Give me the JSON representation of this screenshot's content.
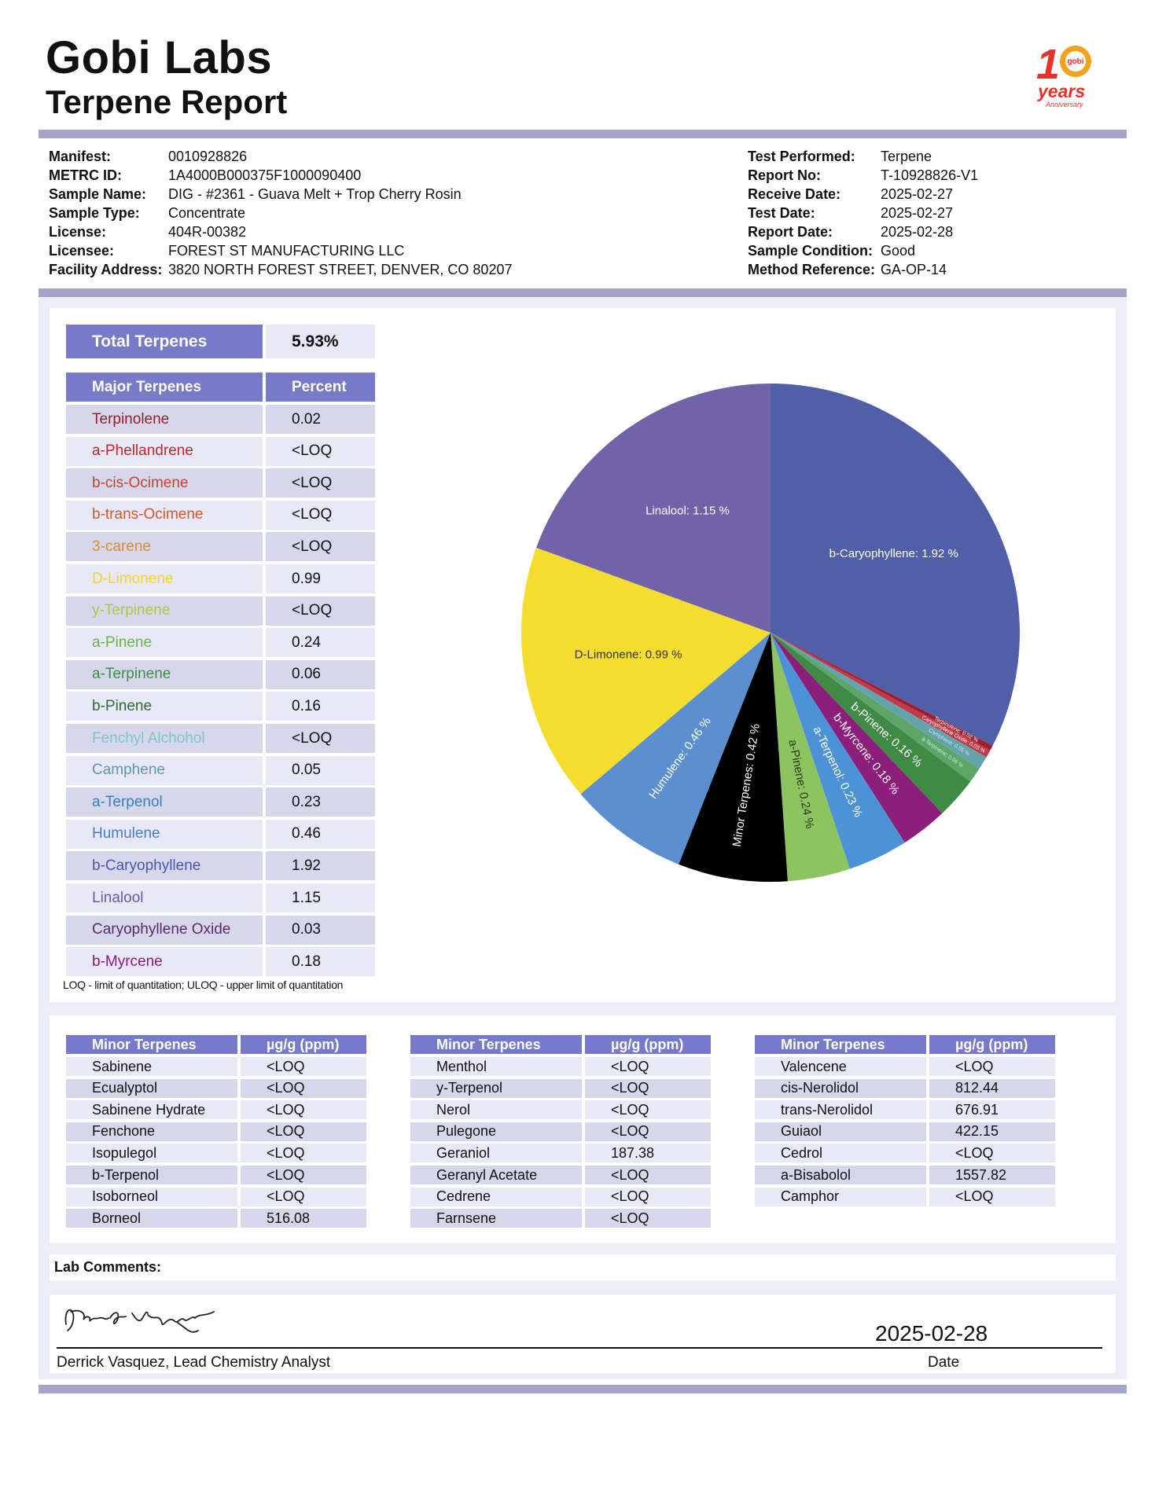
{
  "header": {
    "company": "Gobi Labs",
    "report_title": "Terpene Report",
    "logo_text": "10 years Anniversary",
    "logo_badge": "gobi",
    "logo_years": "years",
    "logo_sub": "Anniversary"
  },
  "sample_info": [
    {
      "label": "Manifest:",
      "value": "0010928826"
    },
    {
      "label": "METRC ID:",
      "value": "1A4000B000375F1000090400"
    },
    {
      "label": "Sample Name:",
      "value": "DIG - #2361 - Guava Melt + Trop Cherry Rosin"
    },
    {
      "label": "Sample Type:",
      "value": "Concentrate"
    },
    {
      "label": "License:",
      "value": "404R-00382"
    },
    {
      "label": "Licensee:",
      "value": "FOREST ST MANUFACTURING LLC"
    },
    {
      "label": "Facility Address:",
      "value": "3820 NORTH FOREST STREET, DENVER, CO 80207"
    }
  ],
  "test_info": [
    {
      "label": "Test Performed:",
      "value": "Terpene"
    },
    {
      "label": "Report No:",
      "value": "T-10928826-V1"
    },
    {
      "label": "Receive Date:",
      "value": "2025-02-27"
    },
    {
      "label": "Test Date:",
      "value": "2025-02-27"
    },
    {
      "label": "Report Date:",
      "value": "2025-02-28"
    },
    {
      "label": "Sample Condition:",
      "value": "Good"
    },
    {
      "label": "Method Reference:",
      "value": "GA-OP-14"
    }
  ],
  "total": {
    "label": "Total Terpenes",
    "value": "5.93%"
  },
  "major": {
    "col1": "Major Terpenes",
    "col2": "Percent",
    "rows": [
      {
        "name": "Terpinolene",
        "value": "0.02",
        "color": "#9b1a2b"
      },
      {
        "name": "a-Phellandrene",
        "value": "<LOQ",
        "color": "#c0282c"
      },
      {
        "name": "b-cis-Ocimene",
        "value": "<LOQ",
        "color": "#c9422c"
      },
      {
        "name": "b-trans-Ocimene",
        "value": "<LOQ",
        "color": "#d35a2a"
      },
      {
        "name": "3-carene",
        "value": "<LOQ",
        "color": "#e08a2a"
      },
      {
        "name": "D-Limonene",
        "value": "0.99",
        "color": "#f2d629"
      },
      {
        "name": "y-Terpinene",
        "value": "<LOQ",
        "color": "#a8c94a"
      },
      {
        "name": "a-Pinene",
        "value": "0.24",
        "color": "#6db24a"
      },
      {
        "name": "a-Terpinene",
        "value": "0.06",
        "color": "#3e8f46"
      },
      {
        "name": "b-Pinene",
        "value": "0.16",
        "color": "#2f6f35"
      },
      {
        "name": "Fenchyl Alchohol",
        "value": "<LOQ",
        "color": "#7bc7c7"
      },
      {
        "name": "Camphene",
        "value": "0.05",
        "color": "#5a9aa8"
      },
      {
        "name": "a-Terpenol",
        "value": "0.23",
        "color": "#3a7fbf"
      },
      {
        "name": "Humulene",
        "value": "0.46",
        "color": "#4a7fc0"
      },
      {
        "name": "b-Caryophyllene",
        "value": "1.92",
        "color": "#4a58a8"
      },
      {
        "name": "Linalool",
        "value": "1.15",
        "color": "#6a5aa8"
      },
      {
        "name": "Caryophyllene Oxide",
        "value": "0.03",
        "color": "#5a2a6a"
      },
      {
        "name": "b-Myrcene",
        "value": "0.18",
        "color": "#8a1a7a"
      }
    ]
  },
  "footnote": "LOQ - limit of quantitation; ULOQ - upper limit of quantitation",
  "chart_data": {
    "type": "pie",
    "title": "",
    "unit": "%",
    "slices": [
      {
        "label": "b-Caryophyllene",
        "value": 1.92,
        "color": "#515ea8"
      },
      {
        "label": "Terpinolene",
        "value": 0.02,
        "color": "#a11d2d"
      },
      {
        "label": "Caryophyllene Oxide",
        "value": 0.03,
        "color": "#c23a4a"
      },
      {
        "label": "Camphene",
        "value": 0.05,
        "color": "#62a3ad"
      },
      {
        "label": "a-Terpinene",
        "value": 0.06,
        "color": "#5ea56a"
      },
      {
        "label": "b-Pinene",
        "value": 0.16,
        "color": "#3f8a44"
      },
      {
        "label": "b-Myrcene",
        "value": 0.18,
        "color": "#8b1f79"
      },
      {
        "label": "a-Terpenol",
        "value": 0.23,
        "color": "#4d91d6"
      },
      {
        "label": "a-Pinene",
        "value": 0.24,
        "color": "#8cc461"
      },
      {
        "label": "Minor Terpenes",
        "value": 0.42,
        "color": "#000000"
      },
      {
        "label": "Humulene",
        "value": 0.46,
        "color": "#5b8fcf"
      },
      {
        "label": "D-Limonene",
        "value": 0.99,
        "color": "#f4dd2f"
      },
      {
        "label": "Linalool",
        "value": 1.15,
        "color": "#7163a8"
      }
    ],
    "labels": [
      "b-Caryophyllene: 1.92 %",
      "Linalool: 1.15 %",
      "D-Limonene: 0.99 %",
      "Humulene: 0.46 %",
      "Minor Terpenes: 0.42 %",
      "a-Pinene: 0.24 %",
      "a-Terpenol: 0.23 %",
      "b-Myrcene: 0.18 %",
      "b-Pinene: 0.16 %",
      "a-Terpinene: 0.06 %",
      "Camphene: 0.05 %",
      "Caryophyllene Oxide: 0.03 %",
      "Terpinolene: 0.02 %"
    ]
  },
  "minor": {
    "col1": "Minor Terpenes",
    "col2": "µg/g (ppm)",
    "tables": [
      [
        {
          "name": "Sabinene",
          "value": "<LOQ"
        },
        {
          "name": "Ecualyptol",
          "value": "<LOQ"
        },
        {
          "name": "Sabinene Hydrate",
          "value": "<LOQ"
        },
        {
          "name": "Fenchone",
          "value": "<LOQ"
        },
        {
          "name": "Isopulegol",
          "value": "<LOQ"
        },
        {
          "name": "b-Terpenol",
          "value": "<LOQ"
        },
        {
          "name": "Isoborneol",
          "value": "<LOQ"
        },
        {
          "name": "Borneol",
          "value": "516.08"
        }
      ],
      [
        {
          "name": "Menthol",
          "value": "<LOQ"
        },
        {
          "name": "y-Terpenol",
          "value": "<LOQ"
        },
        {
          "name": "Nerol",
          "value": "<LOQ"
        },
        {
          "name": "Pulegone",
          "value": "<LOQ"
        },
        {
          "name": "Geraniol",
          "value": "187.38"
        },
        {
          "name": "Geranyl Acetate",
          "value": "<LOQ"
        },
        {
          "name": "Cedrene",
          "value": "<LOQ"
        },
        {
          "name": "Farnsene",
          "value": "<LOQ"
        }
      ],
      [
        {
          "name": "Valencene",
          "value": "<LOQ"
        },
        {
          "name": "cis-Nerolidol",
          "value": "812.44"
        },
        {
          "name": "trans-Nerolidol",
          "value": "676.91"
        },
        {
          "name": "Guiaol",
          "value": "422.15"
        },
        {
          "name": "Cedrol",
          "value": "<LOQ"
        },
        {
          "name": "a-Bisabolol",
          "value": "1557.82"
        },
        {
          "name": "Camphor",
          "value": "<LOQ"
        }
      ]
    ]
  },
  "comments": {
    "label": "Lab Comments:",
    "text": ""
  },
  "signature": {
    "signer": "Derrick Vasquez, Lead Chemistry Analyst",
    "signature_script": "Derrick Vasquez",
    "date": "2025-02-28",
    "date_label": "Date"
  }
}
